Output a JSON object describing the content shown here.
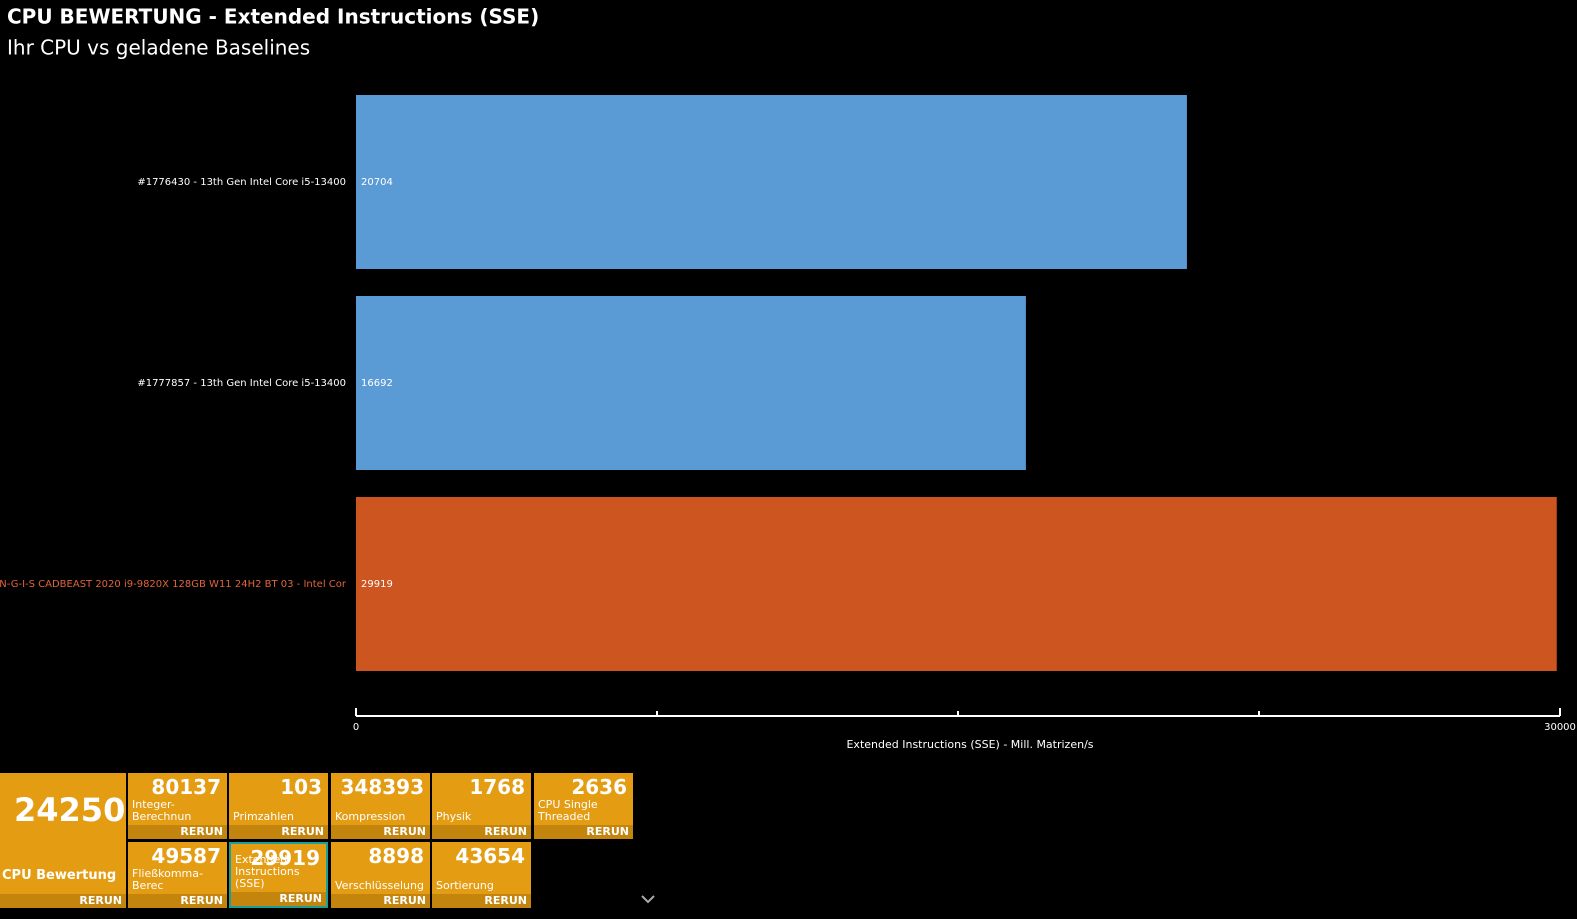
{
  "chart_data": {
    "type": "hbar",
    "title": "CPU BEWERTUNG - Extended Instructions (SSE)",
    "subtitle": "Ihr CPU vs geladene Baselines",
    "categories": [
      "#1776430 - 13th Gen Intel Core i5-13400",
      "#1777857 - 13th Gen Intel Core i5-13400",
      "N-G-I-S CADBEAST 2020 i9-9820X 128GB W11 24H2 BT 03 - Intel Cor"
    ],
    "values": [
      20704,
      16692,
      29919
    ],
    "colors": [
      "#5b9bd5",
      "#5b9bd5",
      "#cc5520"
    ],
    "label_colors": [
      "#ffffff",
      "#ffffff",
      "#e0643a"
    ],
    "xlim": [
      0,
      30000
    ],
    "xticks": [
      0,
      30000
    ],
    "minor_xticks": [
      7500,
      15000,
      22500
    ],
    "xlabel": "Extended Instructions (SSE) - Mill. Matrizen/s"
  },
  "summary": {
    "value": 24250,
    "label": "CPU Bewertung",
    "button": "RERUN"
  },
  "tile_rows": [
    [
      {
        "value": 80137,
        "label": "Integer-Berechnun",
        "button": "RERUN"
      },
      {
        "value": 103,
        "label": "Primzahlen",
        "button": "RERUN"
      },
      {
        "value": 348393,
        "label": "Kompression",
        "button": "RERUN"
      },
      {
        "value": 1768,
        "label": "Physik",
        "button": "RERUN"
      },
      {
        "value": 2636,
        "label": "CPU Single Threaded",
        "button": "RERUN"
      }
    ],
    [
      {
        "value": 49587,
        "label": "Fließkomma-Berec",
        "button": "RERUN"
      },
      {
        "value": 29919,
        "label": "Extended Instructions (SSE)",
        "button": "RERUN"
      },
      {
        "value": 8898,
        "label": "Verschlüsselung",
        "button": "RERUN"
      },
      {
        "value": 43654,
        "label": "Sortierung",
        "button": "RERUN"
      }
    ]
  ]
}
